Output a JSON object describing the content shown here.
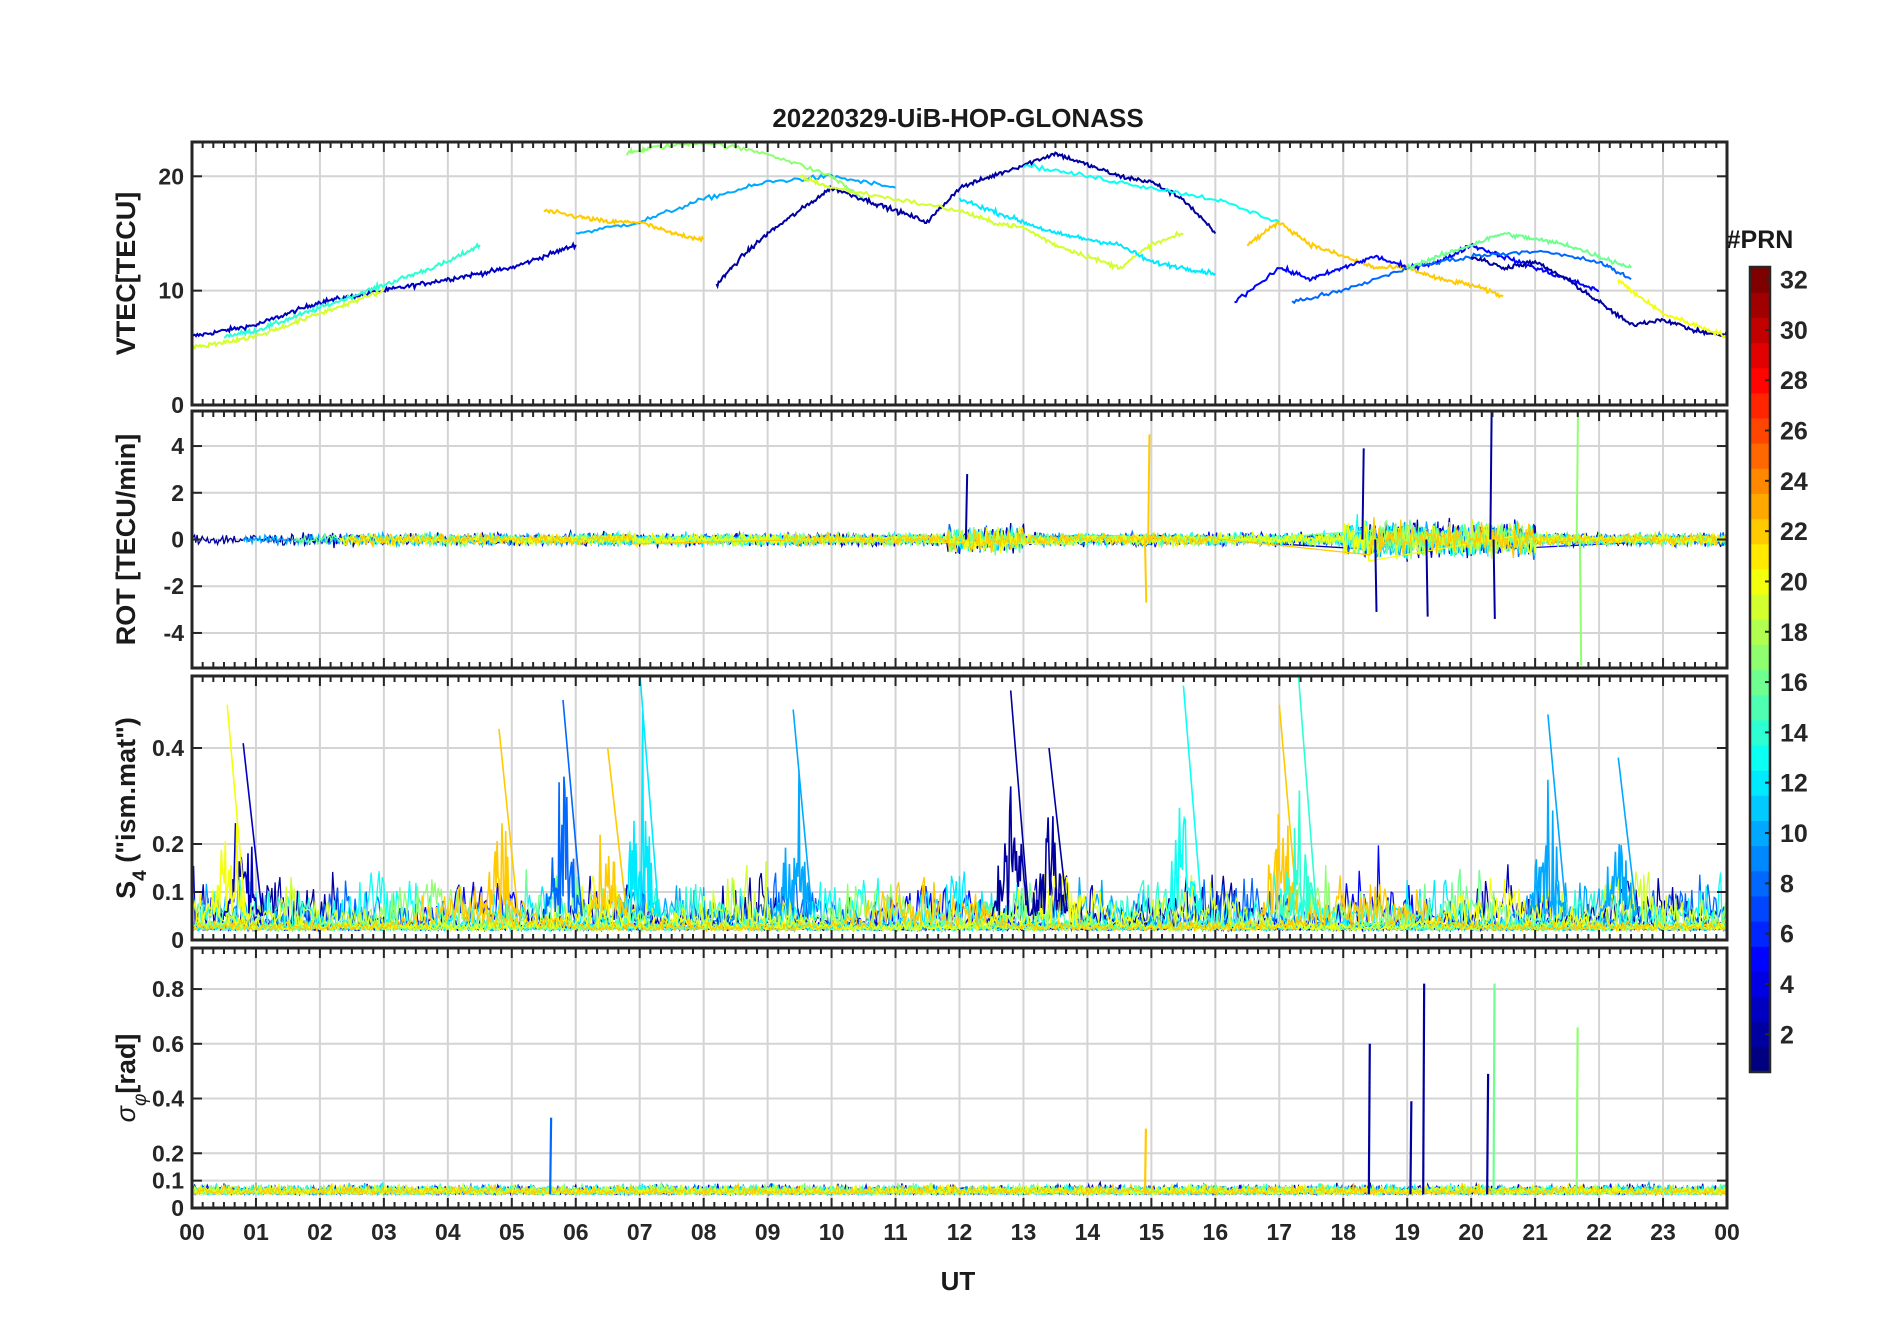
{
  "chart_data": [
    {
      "type": "line",
      "title": "20220329-UiB-HOP-GLONASS",
      "panel": "vtec",
      "ylabel": "VTEC[TECU]",
      "xlabel": "",
      "xlim": [
        0,
        24
      ],
      "ylim": [
        0,
        23
      ],
      "yticks": [
        0,
        10,
        20
      ],
      "grid": true,
      "series": [
        {
          "prn": 3,
          "x": [
            0,
            0.5,
            1,
            1.5,
            2,
            2.5,
            3,
            3.5,
            4,
            4.5,
            5,
            5.5,
            6
          ],
          "y": [
            6,
            6.5,
            7,
            8,
            9,
            9.5,
            10,
            10.5,
            11,
            11.5,
            12,
            13,
            14
          ]
        },
        {
          "prn": 14,
          "x": [
            0.5,
            1,
            1.5,
            2,
            2.5,
            3,
            3.5,
            4,
            4.5
          ],
          "y": [
            6,
            6.5,
            7.5,
            8.5,
            9.5,
            10.5,
            11.5,
            12.5,
            14
          ]
        },
        {
          "prn": 10,
          "x": [
            6,
            7,
            8,
            9,
            10,
            11
          ],
          "y": [
            15,
            16,
            18,
            19.5,
            20,
            19
          ]
        },
        {
          "prn": 22,
          "x": [
            5.5,
            6,
            6.5,
            7,
            7.5,
            8
          ],
          "y": [
            17,
            16.5,
            16,
            16,
            15,
            14.5
          ]
        },
        {
          "prn": 17,
          "x": [
            6.8,
            7.2,
            8,
            9,
            10,
            10.5
          ],
          "y": [
            22,
            22.5,
            23,
            22,
            20,
            18
          ]
        },
        {
          "prn": 2,
          "x": [
            8.2,
            8.6,
            9,
            9.5,
            10,
            10.5,
            11,
            11.5,
            12,
            12.5,
            13,
            13.5,
            14,
            14.5,
            15,
            15.5,
            16
          ],
          "y": [
            10.5,
            13,
            15,
            17,
            19,
            18,
            17,
            16,
            19,
            20,
            21,
            22,
            21,
            20,
            19.5,
            18,
            15
          ]
        },
        {
          "prn": 19,
          "x": [
            9.5,
            10,
            11,
            12,
            12.5,
            13,
            13.5,
            14,
            14.5,
            15,
            15.5
          ],
          "y": [
            20,
            19,
            18,
            17,
            16,
            15.5,
            14,
            13,
            12,
            14,
            15
          ]
        },
        {
          "prn": 12,
          "x": [
            12,
            12.5,
            13,
            13.5,
            14,
            14.5,
            15,
            15.5,
            16
          ],
          "y": [
            18,
            17,
            16,
            15,
            14.5,
            14,
            12.5,
            12,
            11.5
          ]
        },
        {
          "prn": 13,
          "x": [
            13,
            14,
            15,
            16,
            17
          ],
          "y": [
            21,
            20,
            19,
            18,
            16
          ]
        },
        {
          "prn": 22,
          "x": [
            16.5,
            17,
            17.5,
            18,
            18.5,
            19,
            19.5,
            20,
            20.5
          ],
          "y": [
            14,
            16,
            14,
            13,
            12,
            12,
            11,
            10.5,
            9.5
          ]
        },
        {
          "prn": 5,
          "x": [
            16.3,
            17,
            17.5,
            18,
            18.5,
            19,
            19.5,
            20,
            20.5,
            21,
            21.5,
            22
          ],
          "y": [
            9,
            12,
            11,
            12,
            13,
            12,
            12.5,
            14,
            13,
            12,
            11,
            10
          ]
        },
        {
          "prn": 8,
          "x": [
            17.2,
            18,
            19,
            20,
            21,
            22,
            22.5
          ],
          "y": [
            9,
            10,
            12,
            13,
            13.5,
            12.5,
            11
          ]
        },
        {
          "prn": 16,
          "x": [
            19,
            19.5,
            20,
            20.5,
            21,
            21.5,
            22,
            22.5
          ],
          "y": [
            12,
            13,
            14,
            15,
            14.5,
            14,
            13,
            12
          ]
        },
        {
          "prn": 2,
          "x": [
            20,
            20.5,
            21,
            21.5,
            22,
            22.5,
            23,
            23.5,
            24
          ],
          "y": [
            13,
            12,
            12.5,
            11,
            9,
            7,
            7.5,
            6.5,
            6
          ]
        },
        {
          "prn": 20,
          "x": [
            22.3,
            22.5,
            23,
            23.5,
            24
          ],
          "y": [
            11,
            10,
            8,
            7,
            6
          ]
        },
        {
          "prn": 19,
          "x": [
            0,
            0.5,
            1,
            1.5,
            2,
            2.5,
            3
          ],
          "y": [
            5,
            5.5,
            6,
            7,
            8,
            9,
            10
          ]
        }
      ]
    },
    {
      "type": "line",
      "panel": "rot",
      "ylabel": "ROT [TECU/min]",
      "xlabel": "",
      "xlim": [
        0,
        24
      ],
      "ylim": [
        -5.5,
        5.5
      ],
      "yticks": [
        -4,
        -2,
        0,
        2,
        4
      ],
      "grid": true,
      "spikes": [
        {
          "prn": 2,
          "x": 12.1,
          "y": 2.8
        },
        {
          "prn": 22,
          "x": 14.95,
          "y": 4.5
        },
        {
          "prn": 22,
          "x": 14.9,
          "y": -2.7
        },
        {
          "prn": 2,
          "x": 18.3,
          "y": 3.9
        },
        {
          "prn": 2,
          "x": 18.5,
          "y": -3.1
        },
        {
          "prn": 2,
          "x": 19.3,
          "y": -3.3
        },
        {
          "prn": 2,
          "x": 20.3,
          "y": 5.5
        },
        {
          "prn": 2,
          "x": 20.35,
          "y": -3.4
        },
        {
          "prn": 17,
          "x": 21.65,
          "y": 5.4
        },
        {
          "prn": 17,
          "x": 21.7,
          "y": -5.4
        }
      ]
    },
    {
      "type": "line",
      "panel": "s4",
      "ylabel": "S4 (\"ism.mat\")",
      "xlabel": "",
      "xlim": [
        0,
        24
      ],
      "ylim": [
        0,
        0.55
      ],
      "yticks": [
        0,
        0.1,
        0.2,
        0.4
      ],
      "grid": true,
      "bursts": [
        {
          "prn": 3,
          "x": 0.8,
          "y": 0.41
        },
        {
          "prn": 20,
          "x": 0.55,
          "y": 0.49
        },
        {
          "prn": 22,
          "x": 4.8,
          "y": 0.44
        },
        {
          "prn": 8,
          "x": 5.8,
          "y": 0.5
        },
        {
          "prn": 12,
          "x": 7.0,
          "y": 0.56
        },
        {
          "prn": 22,
          "x": 6.5,
          "y": 0.4
        },
        {
          "prn": 10,
          "x": 9.4,
          "y": 0.48
        },
        {
          "prn": 2,
          "x": 12.8,
          "y": 0.52
        },
        {
          "prn": 2,
          "x": 13.4,
          "y": 0.4
        },
        {
          "prn": 13,
          "x": 15.5,
          "y": 0.53
        },
        {
          "prn": 22,
          "x": 17.0,
          "y": 0.49
        },
        {
          "prn": 14,
          "x": 17.3,
          "y": 0.55
        },
        {
          "prn": 10,
          "x": 21.2,
          "y": 0.47
        },
        {
          "prn": 10,
          "x": 22.3,
          "y": 0.38
        }
      ]
    },
    {
      "type": "line",
      "panel": "sigma-phi",
      "ylabel": "σφ[rad]",
      "xlabel": "UT",
      "xlim": [
        0,
        24
      ],
      "ylim": [
        0,
        0.95
      ],
      "yticks": [
        0,
        0.1,
        0.2,
        0.4,
        0.6,
        0.8
      ],
      "xticklabels": [
        "00",
        "01",
        "02",
        "03",
        "04",
        "05",
        "06",
        "07",
        "08",
        "09",
        "10",
        "11",
        "12",
        "13",
        "14",
        "15",
        "16",
        "17",
        "18",
        "19",
        "20",
        "21",
        "22",
        "23",
        "00"
      ],
      "grid": true,
      "spikes": [
        {
          "prn": 8,
          "x": 5.6,
          "y": 0.33
        },
        {
          "prn": 22,
          "x": 14.9,
          "y": 0.29
        },
        {
          "prn": 2,
          "x": 18.4,
          "y": 0.6
        },
        {
          "prn": 2,
          "x": 19.05,
          "y": 0.39
        },
        {
          "prn": 2,
          "x": 19.25,
          "y": 0.82
        },
        {
          "prn": 2,
          "x": 20.25,
          "y": 0.49
        },
        {
          "prn": 16,
          "x": 20.35,
          "y": 0.82
        },
        {
          "prn": 17,
          "x": 21.65,
          "y": 0.66
        }
      ]
    }
  ],
  "colorbar": {
    "label": "#PRN",
    "ticks": [
      2,
      4,
      6,
      8,
      10,
      12,
      14,
      16,
      18,
      20,
      22,
      24,
      26,
      28,
      30,
      32
    ],
    "range": [
      1,
      32
    ]
  }
}
